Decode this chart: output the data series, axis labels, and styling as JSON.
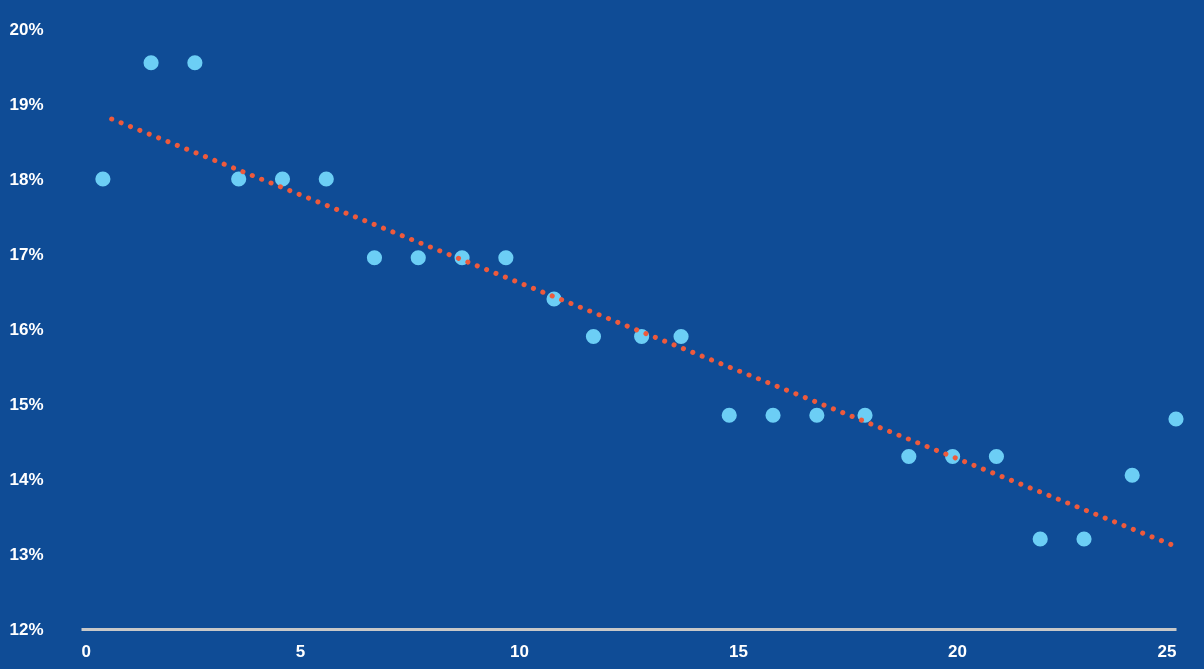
{
  "chart_data": {
    "type": "scatter",
    "xlim": [
      0,
      25
    ],
    "xticks": [
      0,
      5,
      10,
      15,
      20,
      25
    ],
    "ylim": [
      12,
      20
    ],
    "yticks": [
      {
        "value": 12,
        "label": "12%"
      },
      {
        "value": 13,
        "label": "13%"
      },
      {
        "value": 14,
        "label": "14%"
      },
      {
        "value": 15,
        "label": "15%"
      },
      {
        "value": 16,
        "label": "16%"
      },
      {
        "value": 17,
        "label": "17%"
      },
      {
        "value": 18,
        "label": "18%"
      },
      {
        "value": 19,
        "label": "19%"
      },
      {
        "value": 20,
        "label": "20%"
      }
    ],
    "series": [
      {
        "marker": "circle",
        "color": "#6ccef5",
        "x": [
          0.5,
          1.6,
          2.6,
          3.6,
          4.6,
          5.6,
          6.7,
          7.7,
          8.7,
          9.7,
          10.8,
          11.7,
          12.8,
          13.7,
          14.8,
          15.8,
          16.8,
          17.9,
          18.9,
          19.9,
          20.9,
          21.9,
          22.9,
          24.0,
          25.0
        ],
        "values": [
          18.0,
          19.55,
          19.55,
          18.0,
          18.0,
          18.0,
          16.95,
          16.95,
          16.95,
          16.95,
          16.4,
          15.9,
          15.9,
          15.9,
          14.85,
          14.85,
          14.85,
          14.85,
          14.3,
          14.3,
          14.3,
          13.2,
          13.2,
          14.05,
          14.8
        ]
      },
      {
        "type": "line",
        "color": "#ee5a3c",
        "line_style": "dotted",
        "x": [
          0.7,
          25.0
        ],
        "values": [
          18.8,
          13.1
        ]
      }
    ]
  }
}
